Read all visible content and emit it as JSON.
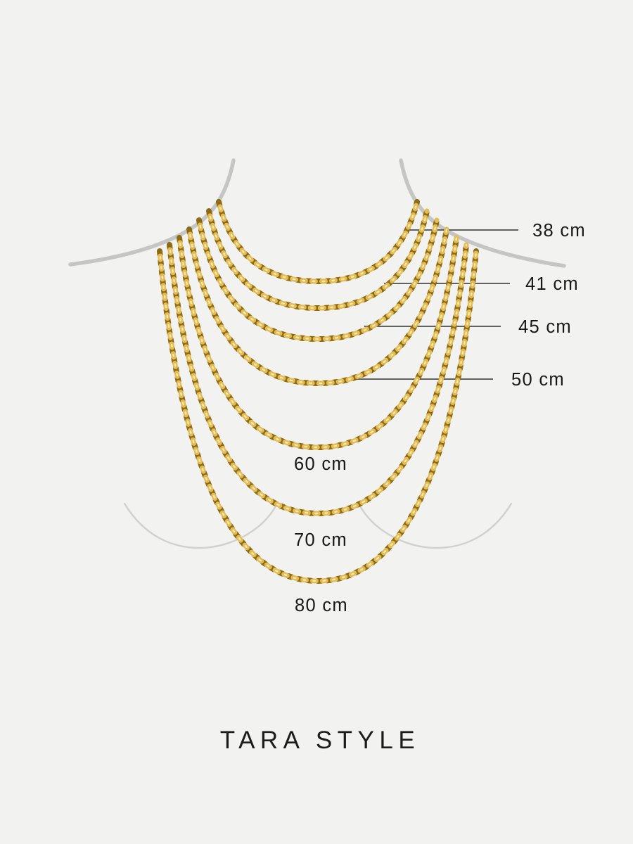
{
  "colors": {
    "background": "#f2f2f0",
    "silhouette": "#c5c5c4",
    "bust": "#d0d0cf",
    "leader_line": "#4c4c4c",
    "label_text": "#171717",
    "brand_text": "#1c1c1c",
    "chain_base": "#b68c28",
    "chain_dark": "#8c6a16",
    "chain_light": "#e3bc55",
    "chain_highlight": "#f6e9b4"
  },
  "sizes": [
    {
      "cm": 38,
      "label": "38 cm",
      "annotation": "leader"
    },
    {
      "cm": 41,
      "label": "41 cm",
      "annotation": "leader"
    },
    {
      "cm": 45,
      "label": "45 cm",
      "annotation": "leader"
    },
    {
      "cm": 50,
      "label": "50 cm",
      "annotation": "leader"
    },
    {
      "cm": 60,
      "label": "60 cm",
      "annotation": "centered"
    },
    {
      "cm": 70,
      "label": "70 cm",
      "annotation": "centered"
    },
    {
      "cm": 80,
      "label": "80 cm",
      "annotation": "centered"
    }
  ],
  "brand": {
    "name": "TARA STYLE"
  }
}
